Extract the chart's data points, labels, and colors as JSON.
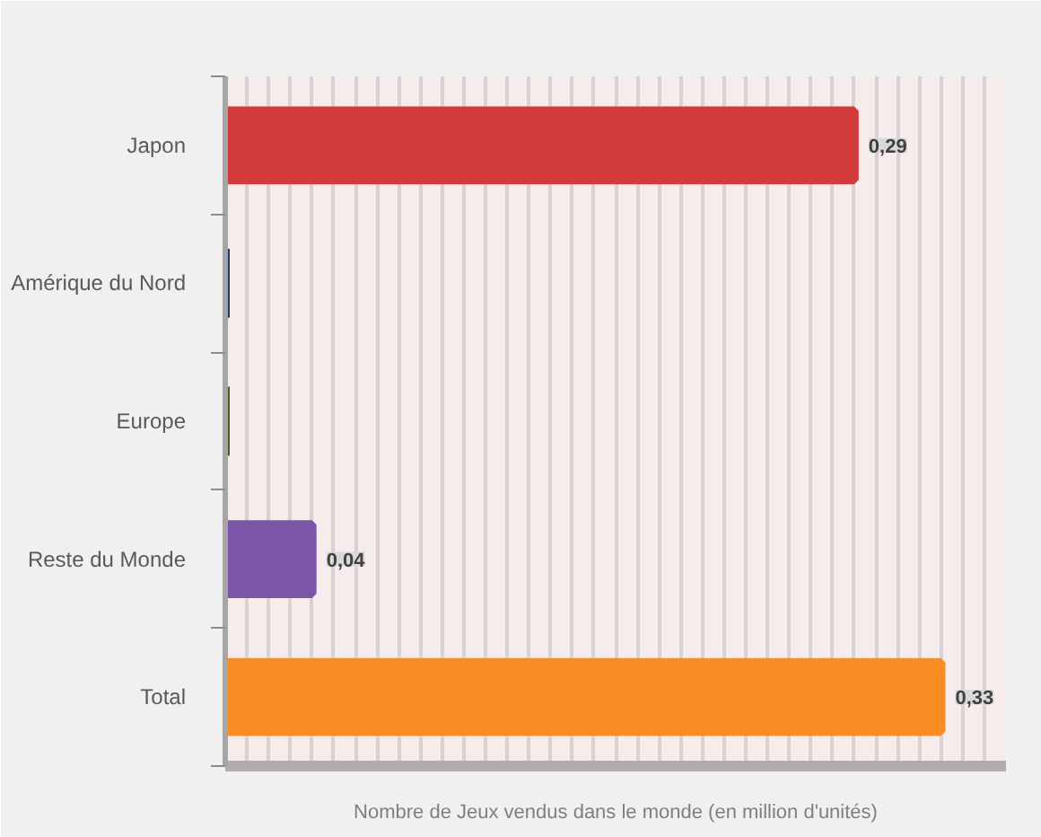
{
  "chart_data": {
    "type": "bar",
    "orientation": "horizontal",
    "categories": [
      "Japon",
      "Amérique du Nord",
      "Europe",
      "Reste du Monde",
      "Total"
    ],
    "values": [
      0.29,
      0,
      0,
      0.04,
      0.33
    ],
    "colors": [
      "#d23b3b",
      "#1f3a5f",
      "#4a5e23",
      "#7a55a8",
      "#f98c22"
    ],
    "value_labels": [
      "0,29",
      null,
      null,
      "0,04",
      "0,33"
    ],
    "xlabel": "Nombre de Jeux vendus dans le monde (en million d'unités)",
    "xlim": [
      0,
      0.36
    ],
    "xticks": [
      {
        "value": 0,
        "label": null
      },
      {
        "value": 0.01,
        "label": null
      },
      {
        "value": 0.02,
        "label": null
      },
      {
        "value": 0.03,
        "label": null
      },
      {
        "value": 0.04,
        "label": null
      },
      {
        "value": 0.05,
        "label": null
      },
      {
        "value": 0.06,
        "label": null
      },
      {
        "value": 0.07,
        "label": null
      },
      {
        "value": 0.08,
        "label": null
      },
      {
        "value": 0.09,
        "label": null
      },
      {
        "value": 0.1,
        "label": null
      },
      {
        "value": 0.11,
        "label": null
      },
      {
        "value": 0.12,
        "label": null
      },
      {
        "value": 0.13,
        "label": null
      },
      {
        "value": 0.14,
        "label": null
      },
      {
        "value": 0.15,
        "label": null
      },
      {
        "value": 0.16,
        "label": null
      },
      {
        "value": 0.17,
        "label": null
      },
      {
        "value": 0.18,
        "label": null
      },
      {
        "value": 0.19,
        "label": null
      },
      {
        "value": 0.2,
        "label": null
      },
      {
        "value": 0.21,
        "label": null
      },
      {
        "value": 0.22,
        "label": null
      },
      {
        "value": 0.23,
        "label": null
      },
      {
        "value": 0.24,
        "label": null
      },
      {
        "value": 0.25,
        "label": null
      },
      {
        "value": 0.26,
        "label": null
      },
      {
        "value": 0.27,
        "label": null
      },
      {
        "value": 0.28,
        "label": null
      },
      {
        "value": 0.29,
        "label": null
      },
      {
        "value": 0.3,
        "label": null
      },
      {
        "value": 0.31,
        "label": null
      },
      {
        "value": 0.32,
        "label": null
      },
      {
        "value": 0.33,
        "label": null
      },
      {
        "value": 0.34,
        "label": null
      },
      {
        "value": 0.35,
        "label": null
      },
      {
        "value": 0.36,
        "label": null
      }
    ],
    "grid": "x",
    "tick_labels": "y"
  }
}
